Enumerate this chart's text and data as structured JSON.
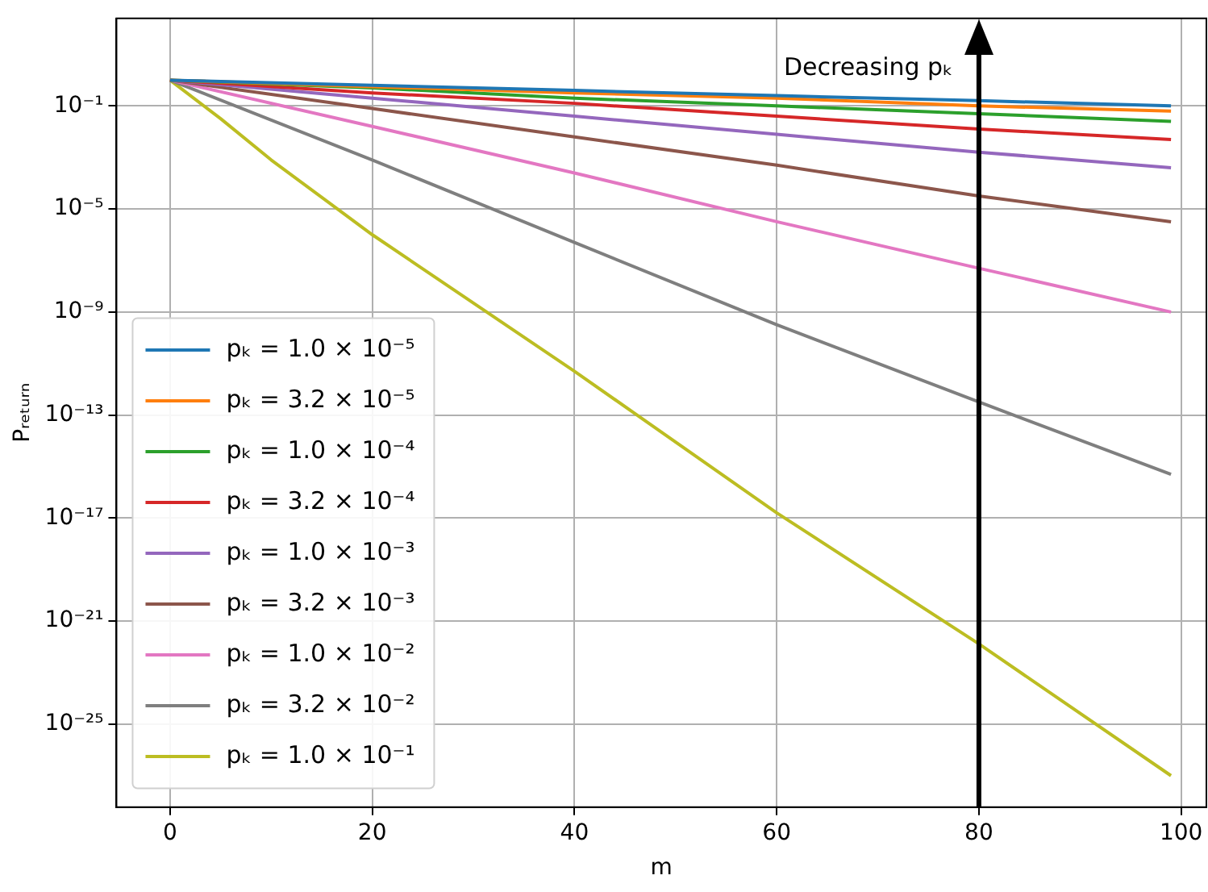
{
  "chart_data": {
    "type": "line",
    "xlabel": "m",
    "ylabel": "Pᵣₑₜᵤᵣₙ",
    "log": "y",
    "grid": true,
    "legend": "center left",
    "line_style": "solid",
    "marker": "none",
    "x": [
      0,
      20,
      40,
      60,
      80,
      99
    ],
    "xlim": [
      -5.3,
      102.5
    ],
    "xticks": [
      0,
      20,
      40,
      60,
      80,
      100
    ],
    "ylim": [
      6e-29,
      250
    ],
    "yticks": [
      {
        "value": 0.1,
        "label": "10⁻¹"
      },
      {
        "value": 1e-05,
        "label": "10⁻⁵"
      },
      {
        "value": 1e-09,
        "label": "10⁻⁹"
      },
      {
        "value": 1e-13,
        "label": "10⁻¹³"
      },
      {
        "value": 1e-17,
        "label": "10⁻¹⁷"
      },
      {
        "value": 1e-21,
        "label": "10⁻²¹"
      },
      {
        "value": 1e-25,
        "label": "10⁻²⁵"
      }
    ],
    "ref_lines": [
      {
        "axis": "x",
        "value": 80,
        "label": "Decreasing pₖ",
        "color": "#000000"
      }
    ],
    "series": [
      {
        "name": "pₖ = 1.0 × 10⁻⁵",
        "color": "#1f77b4",
        "values": [
          1,
          0.63,
          0.4,
          0.25,
          0.16,
          0.1
        ]
      },
      {
        "name": "pₖ = 3.2 × 10⁻⁵",
        "color": "#ff7f0e",
        "values": [
          1,
          0.56,
          0.32,
          0.2,
          0.1,
          0.063
        ]
      },
      {
        "name": "pₖ = 1.0 × 10⁻⁴",
        "color": "#2ca02c",
        "values": [
          1,
          0.5,
          0.2,
          0.1,
          0.05,
          0.025
        ]
      },
      {
        "name": "pₖ = 3.2 × 10⁻⁴",
        "color": "#d62728",
        "values": [
          1,
          0.32,
          0.126,
          0.04,
          0.0126,
          0.005
        ]
      },
      {
        "name": "pₖ = 1.0 × 10⁻³",
        "color": "#9467bd",
        "values": [
          1,
          0.2,
          0.04,
          0.0079,
          0.0016,
          0.0004
        ]
      },
      {
        "name": "pₖ = 3.2 × 10⁻³",
        "color": "#8c564b",
        "values": [
          1,
          0.079,
          0.0063,
          0.0005,
          3.2e-05,
          3.2e-06
        ]
      },
      {
        "name": "pₖ = 1.0 × 10⁻²",
        "color": "#e377c2",
        "values": [
          1,
          0.016,
          0.00025,
          3.2e-06,
          5e-08,
          1e-09
        ]
      },
      {
        "name": "pₖ = 3.2 × 10⁻²",
        "color": "#7f7f7f",
        "values": [
          1,
          0.0008,
          5e-07,
          3.2e-10,
          3.2e-13,
          5e-16
        ]
      },
      {
        "name": "pₖ = 1.0 × 10⁻¹",
        "color": "#bcbd22",
        "x": [
          0,
          5,
          10,
          20,
          40,
          60,
          80,
          99
        ],
        "values": [
          1,
          0.032,
          0.0008,
          1e-06,
          5e-12,
          1.6e-17,
          1.3e-22,
          1e-27
        ]
      }
    ]
  }
}
